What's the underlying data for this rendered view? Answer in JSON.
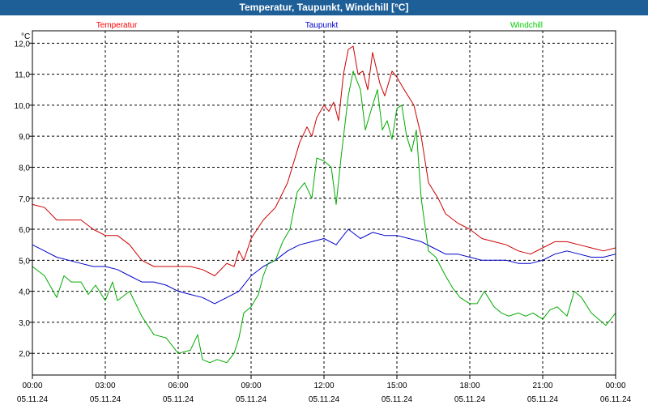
{
  "window": {
    "title": "Temperatur, Taupunkt, Windchill [°C]"
  },
  "chart_data": {
    "type": "line",
    "title": "Temperatur, Taupunkt, Windchill [°C]",
    "ylabel": "°C",
    "ylim": [
      1.3,
      12.4
    ],
    "xlim_hours": [
      0,
      24
    ],
    "grid": true,
    "y_ticks": [
      "2,0",
      "3,0",
      "4,0",
      "5,0",
      "6,0",
      "7,0",
      "8,0",
      "9,0",
      "10,0",
      "11,0",
      "12,0"
    ],
    "x_ticks": [
      {
        "time": "00:00",
        "date": "05.11.24"
      },
      {
        "time": "03:00",
        "date": "05.11.24"
      },
      {
        "time": "06:00",
        "date": "05.11.24"
      },
      {
        "time": "09:00",
        "date": "05.11.24"
      },
      {
        "time": "12:00",
        "date": "05.11.24"
      },
      {
        "time": "15:00",
        "date": "05.11.24"
      },
      {
        "time": "18:00",
        "date": "05.11.24"
      },
      {
        "time": "21:00",
        "date": "05.11.24"
      },
      {
        "time": "00:00",
        "date": "06.11.24"
      }
    ],
    "series": [
      {
        "name": "Temperatur",
        "color": "#cc0000",
        "label_color": "#ff0000",
        "points": [
          [
            0,
            6.8
          ],
          [
            0.5,
            6.7
          ],
          [
            1,
            6.3
          ],
          [
            1.5,
            6.3
          ],
          [
            2,
            6.3
          ],
          [
            2.5,
            6.0
          ],
          [
            3,
            5.8
          ],
          [
            3.5,
            5.8
          ],
          [
            4,
            5.5
          ],
          [
            4.5,
            5.0
          ],
          [
            5,
            4.8
          ],
          [
            5.5,
            4.8
          ],
          [
            6,
            4.8
          ],
          [
            6.5,
            4.8
          ],
          [
            7,
            4.7
          ],
          [
            7.5,
            4.5
          ],
          [
            8,
            4.9
          ],
          [
            8.3,
            4.8
          ],
          [
            8.5,
            5.3
          ],
          [
            8.7,
            5.0
          ],
          [
            9,
            5.7
          ],
          [
            9.5,
            6.3
          ],
          [
            10,
            6.7
          ],
          [
            10.5,
            7.5
          ],
          [
            11,
            8.8
          ],
          [
            11.3,
            9.3
          ],
          [
            11.5,
            9.0
          ],
          [
            11.7,
            9.6
          ],
          [
            12,
            10.0
          ],
          [
            12.2,
            9.8
          ],
          [
            12.4,
            10.1
          ],
          [
            12.6,
            9.5
          ],
          [
            12.8,
            11.0
          ],
          [
            13,
            11.8
          ],
          [
            13.2,
            11.9
          ],
          [
            13.4,
            11.0
          ],
          [
            13.6,
            11.1
          ],
          [
            13.8,
            10.5
          ],
          [
            14,
            11.7
          ],
          [
            14.3,
            10.7
          ],
          [
            14.5,
            10.3
          ],
          [
            14.8,
            11.1
          ],
          [
            15,
            10.9
          ],
          [
            15.3,
            10.5
          ],
          [
            15.7,
            10.0
          ],
          [
            16,
            9.0
          ],
          [
            16.3,
            7.5
          ],
          [
            16.7,
            7.0
          ],
          [
            17,
            6.5
          ],
          [
            17.5,
            6.2
          ],
          [
            18,
            6.0
          ],
          [
            18.5,
            5.7
          ],
          [
            19,
            5.6
          ],
          [
            19.5,
            5.5
          ],
          [
            20,
            5.3
          ],
          [
            20.5,
            5.2
          ],
          [
            21,
            5.4
          ],
          [
            21.5,
            5.6
          ],
          [
            22,
            5.6
          ],
          [
            22.5,
            5.5
          ],
          [
            23,
            5.4
          ],
          [
            23.5,
            5.3
          ],
          [
            24,
            5.4
          ]
        ]
      },
      {
        "name": "Taupunkt",
        "color": "#0000cc",
        "label_color": "#0000cc",
        "points": [
          [
            0,
            5.5
          ],
          [
            0.5,
            5.3
          ],
          [
            1,
            5.1
          ],
          [
            1.5,
            5.0
          ],
          [
            2,
            4.9
          ],
          [
            2.5,
            4.8
          ],
          [
            3,
            4.8
          ],
          [
            3.5,
            4.7
          ],
          [
            4,
            4.5
          ],
          [
            4.5,
            4.3
          ],
          [
            5,
            4.3
          ],
          [
            5.5,
            4.2
          ],
          [
            6,
            4.0
          ],
          [
            6.5,
            3.9
          ],
          [
            7,
            3.8
          ],
          [
            7.5,
            3.6
          ],
          [
            8,
            3.8
          ],
          [
            8.5,
            4.0
          ],
          [
            9,
            4.5
          ],
          [
            9.5,
            4.8
          ],
          [
            10,
            5.0
          ],
          [
            10.5,
            5.3
          ],
          [
            11,
            5.5
          ],
          [
            11.5,
            5.6
          ],
          [
            12,
            5.7
          ],
          [
            12.5,
            5.5
          ],
          [
            13,
            6.0
          ],
          [
            13.5,
            5.7
          ],
          [
            14,
            5.9
          ],
          [
            14.5,
            5.8
          ],
          [
            15,
            5.8
          ],
          [
            15.5,
            5.7
          ],
          [
            16,
            5.6
          ],
          [
            16.5,
            5.4
          ],
          [
            17,
            5.2
          ],
          [
            17.5,
            5.2
          ],
          [
            18,
            5.1
          ],
          [
            18.5,
            5.0
          ],
          [
            19,
            5.0
          ],
          [
            19.5,
            5.0
          ],
          [
            20,
            4.9
          ],
          [
            20.5,
            4.9
          ],
          [
            21,
            5.0
          ],
          [
            21.5,
            5.2
          ],
          [
            22,
            5.3
          ],
          [
            22.5,
            5.2
          ],
          [
            23,
            5.1
          ],
          [
            23.5,
            5.1
          ],
          [
            24,
            5.2
          ]
        ]
      },
      {
        "name": "Windchill",
        "color": "#00aa00",
        "label_color": "#00cc00",
        "points": [
          [
            0,
            4.8
          ],
          [
            0.5,
            4.5
          ],
          [
            1,
            3.8
          ],
          [
            1.3,
            4.5
          ],
          [
            1.6,
            4.3
          ],
          [
            2,
            4.3
          ],
          [
            2.3,
            3.9
          ],
          [
            2.6,
            4.2
          ],
          [
            3,
            3.7
          ],
          [
            3.3,
            4.3
          ],
          [
            3.5,
            3.7
          ],
          [
            4,
            4.0
          ],
          [
            4.5,
            3.2
          ],
          [
            5,
            2.6
          ],
          [
            5.5,
            2.5
          ],
          [
            6,
            2.0
          ],
          [
            6.5,
            2.1
          ],
          [
            6.8,
            2.6
          ],
          [
            7,
            1.8
          ],
          [
            7.3,
            1.7
          ],
          [
            7.6,
            1.8
          ],
          [
            8,
            1.7
          ],
          [
            8.3,
            2.0
          ],
          [
            8.5,
            2.5
          ],
          [
            8.7,
            3.3
          ],
          [
            9,
            3.5
          ],
          [
            9.3,
            3.9
          ],
          [
            9.5,
            4.5
          ],
          [
            9.7,
            4.9
          ],
          [
            10,
            5.0
          ],
          [
            10.3,
            5.6
          ],
          [
            10.6,
            6.0
          ],
          [
            10.9,
            7.2
          ],
          [
            11.2,
            7.5
          ],
          [
            11.5,
            7.0
          ],
          [
            11.7,
            8.3
          ],
          [
            12,
            8.2
          ],
          [
            12.3,
            8.0
          ],
          [
            12.5,
            6.8
          ],
          [
            12.7,
            8.3
          ],
          [
            13,
            10.3
          ],
          [
            13.2,
            11.1
          ],
          [
            13.5,
            10.5
          ],
          [
            13.7,
            9.2
          ],
          [
            14,
            10.0
          ],
          [
            14.2,
            10.5
          ],
          [
            14.4,
            9.2
          ],
          [
            14.6,
            9.5
          ],
          [
            14.8,
            8.9
          ],
          [
            15,
            9.9
          ],
          [
            15.2,
            10.0
          ],
          [
            15.4,
            9.0
          ],
          [
            15.6,
            8.5
          ],
          [
            15.8,
            9.2
          ],
          [
            16,
            7.0
          ],
          [
            16.3,
            5.3
          ],
          [
            16.6,
            5.1
          ],
          [
            17,
            4.5
          ],
          [
            17.3,
            4.1
          ],
          [
            17.6,
            3.8
          ],
          [
            18,
            3.6
          ],
          [
            18.3,
            3.6
          ],
          [
            18.6,
            4.0
          ],
          [
            19,
            3.5
          ],
          [
            19.3,
            3.3
          ],
          [
            19.6,
            3.2
          ],
          [
            20,
            3.3
          ],
          [
            20.3,
            3.2
          ],
          [
            20.6,
            3.3
          ],
          [
            21,
            3.1
          ],
          [
            21.3,
            3.4
          ],
          [
            21.6,
            3.5
          ],
          [
            22,
            3.2
          ],
          [
            22.3,
            4.0
          ],
          [
            22.6,
            3.8
          ],
          [
            23,
            3.3
          ],
          [
            23.3,
            3.1
          ],
          [
            23.6,
            2.9
          ],
          [
            24,
            3.3
          ]
        ]
      }
    ]
  }
}
